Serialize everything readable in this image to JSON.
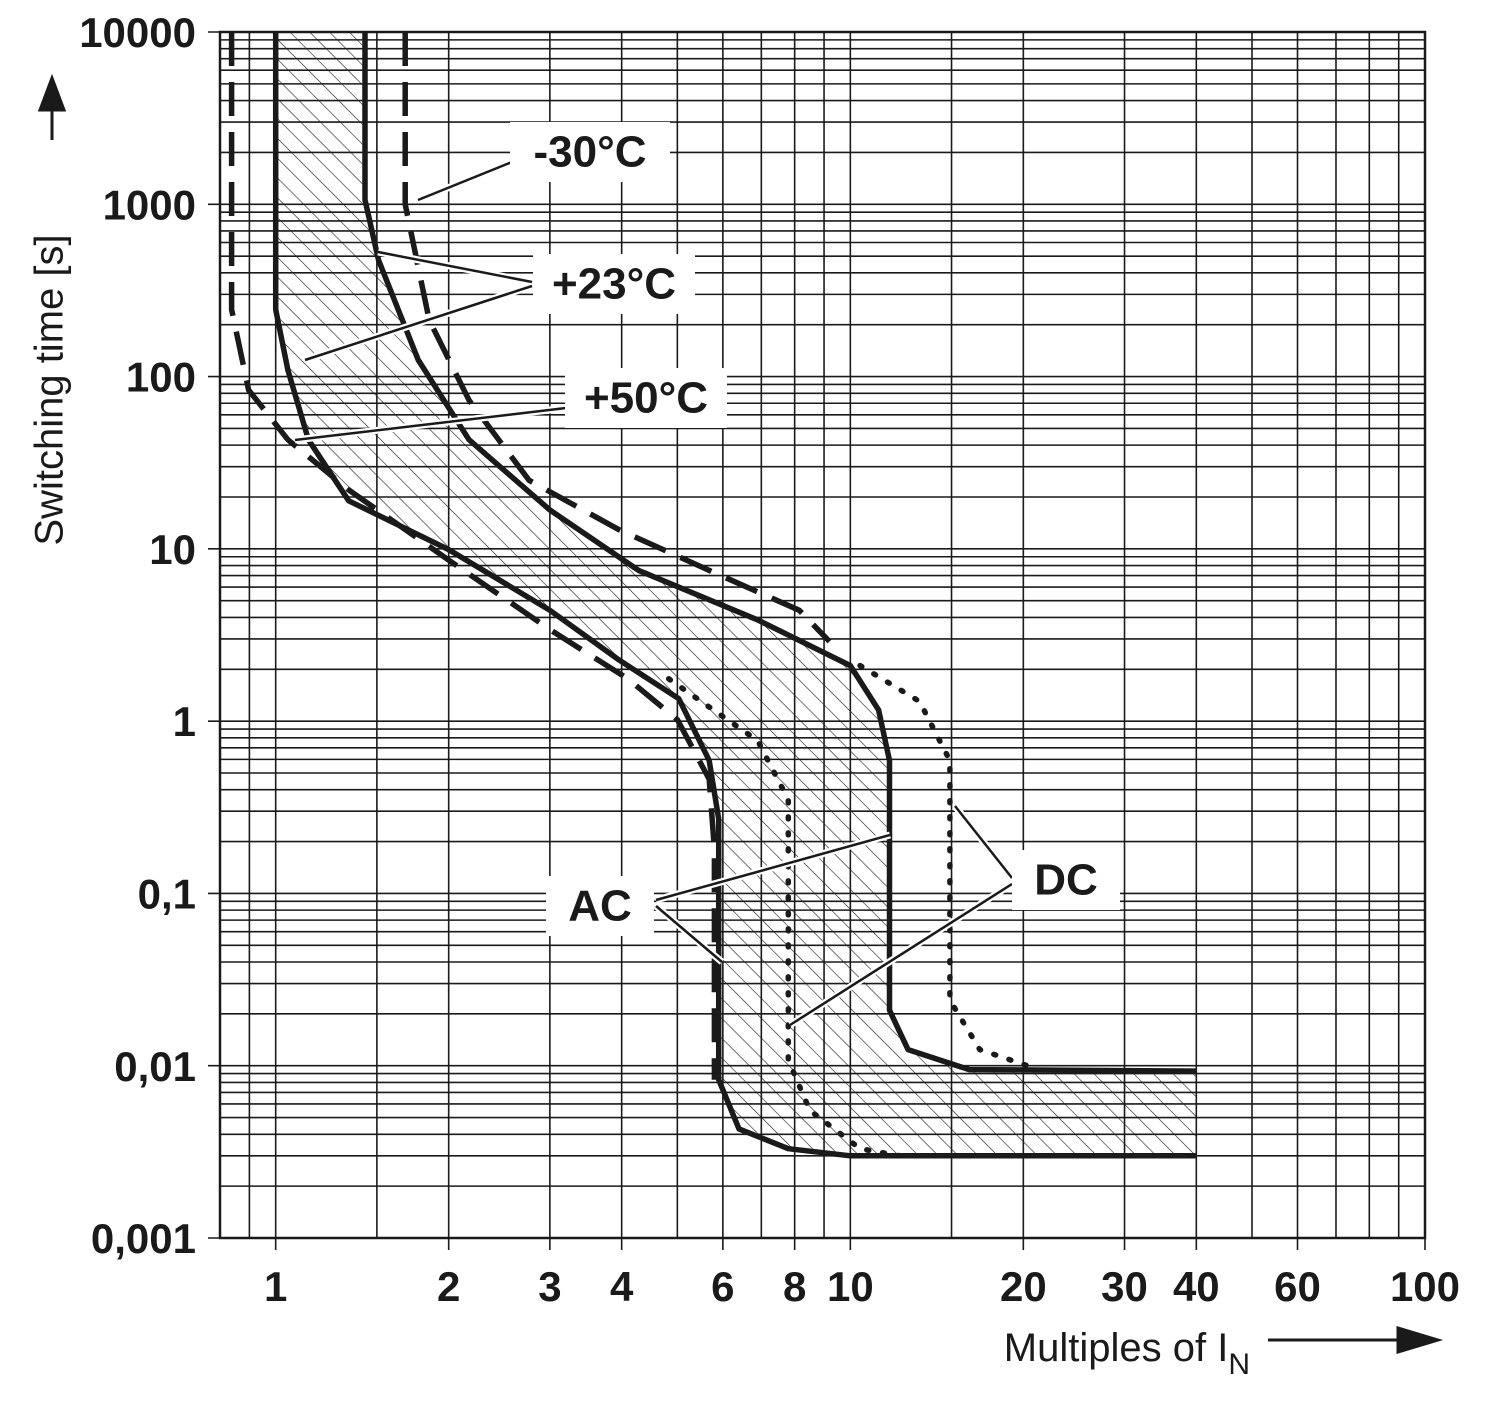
{
  "chart_data": {
    "type": "line",
    "y_label": "Switching time [s]",
    "x_label": {
      "text": "Multiples of I",
      "subscript": "N"
    },
    "log_x": true,
    "log_y": true,
    "grid": true,
    "xlim": [
      0.8,
      100
    ],
    "xticks": [
      1,
      2,
      3,
      4,
      6,
      8,
      10,
      20,
      30,
      40,
      60,
      100
    ],
    "xgrid": [
      0.9,
      1.5,
      5,
      7,
      9,
      15,
      50,
      70,
      80,
      90
    ],
    "ylim": [
      0.001,
      10000
    ],
    "yticks": [
      {
        "value": 0.001,
        "label": "0,001"
      },
      {
        "value": 0.01,
        "label": "0,01"
      },
      {
        "value": 0.1,
        "label": "0,1"
      },
      1,
      10,
      100,
      1000,
      10000
    ],
    "ygrid": [
      0.002,
      0.003,
      0.004,
      0.005,
      0.006,
      0.007,
      0.008,
      0.009,
      0.02,
      0.03,
      0.04,
      0.05,
      0.06,
      0.07,
      0.08,
      0.09,
      0.2,
      0.3,
      0.4,
      0.5,
      0.6,
      0.7,
      0.8,
      0.9,
      2,
      3,
      4,
      5,
      6,
      7,
      8,
      9,
      20,
      30,
      40,
      50,
      60,
      70,
      80,
      90,
      200,
      300,
      400,
      500,
      600,
      700,
      800,
      900,
      2000,
      3000,
      4000,
      5000,
      6000,
      7000,
      8000,
      9000
    ],
    "hatched_between": [
      0,
      1
    ],
    "series": [
      {
        "color": "#1a1a1a",
        "style": "solid",
        "x": [
          1.0,
          1.0,
          1.05,
          1.14,
          1.34,
          2.0,
          3.0,
          3.96,
          5.03,
          5.68,
          5.9,
          5.9,
          6.4,
          7.8,
          10,
          40
        ],
        "values": [
          10000,
          245,
          109,
          43,
          19,
          9.9,
          4.4,
          2.26,
          1.35,
          0.59,
          0.27,
          0.0083,
          0.0043,
          0.0033,
          0.003,
          0.003
        ]
      },
      {
        "color": "#1a1a1a",
        "style": "solid",
        "x": [
          1.43,
          1.43,
          1.51,
          1.77,
          2.17,
          3.0,
          4.28,
          6.9,
          10,
          11.2,
          11.7,
          11.7,
          12.6,
          16.1,
          40
        ],
        "values": [
          10000,
          1060,
          475,
          125,
          43,
          16.8,
          7.5,
          3.87,
          2.1,
          1.16,
          0.59,
          0.021,
          0.0124,
          0.0095,
          0.0093
        ]
      },
      {
        "color": "#1a1a1a",
        "style": "dashed",
        "x": [
          1.68,
          1.68,
          1.85,
          2.17,
          2.76,
          3.96,
          5.68,
          8.15,
          9.2
        ],
        "values": [
          10000,
          1000,
          213,
          73,
          25,
          12.9,
          7.5,
          4.4,
          2.9
        ]
      },
      {
        "color": "#1a1a1a",
        "style": "dashed",
        "x": [
          0.838,
          0.838,
          0.897,
          1.05,
          1.34,
          2.0,
          3.0,
          4.1,
          5.0,
          5.68,
          5.8,
          5.8
        ],
        "values": [
          10000,
          245,
          83.6,
          43,
          22,
          8.6,
          3.4,
          1.76,
          1.02,
          0.46,
          0.18,
          0.0083
        ]
      },
      {
        "color": "#1a1a1a",
        "style": "dotted",
        "x": [
          4.83,
          6.9,
          7.8,
          7.8,
          8.5,
          10.4,
          12.2
        ],
        "values": [
          1.76,
          0.77,
          0.35,
          0.0108,
          0.0055,
          0.0033,
          0.003
        ]
      },
      {
        "color": "#1a1a1a",
        "style": "dotted",
        "x": [
          10.4,
          13.2,
          14.9,
          14.9,
          16.8,
          21.3
        ],
        "values": [
          2.1,
          1.3,
          0.59,
          0.024,
          0.0124,
          0.0095
        ]
      }
    ],
    "annotations": [
      {
        "text": "-30°C"
      },
      {
        "text": "+23°C"
      },
      {
        "text": "+50°C"
      },
      {
        "text": "AC"
      },
      {
        "text": "DC"
      }
    ]
  }
}
